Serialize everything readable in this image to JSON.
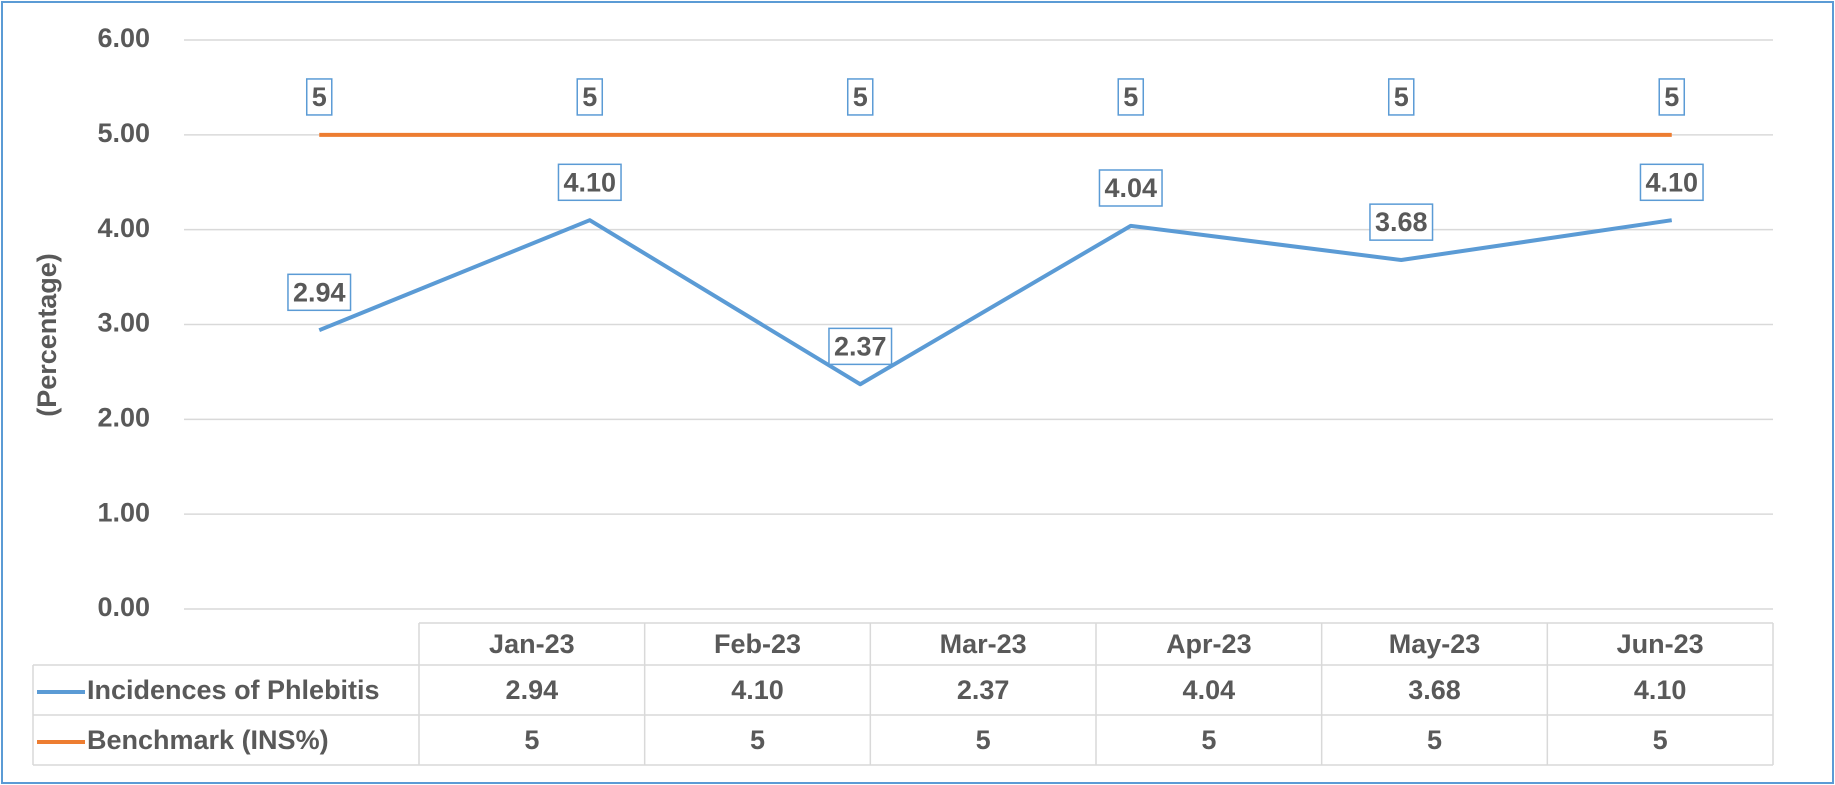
{
  "chart_data": {
    "type": "line",
    "y_label": "(Percentage)",
    "categories": [
      "Jan-23",
      "Feb-23",
      "Mar-23",
      "Apr-23",
      "May-23",
      "Jun-23"
    ],
    "series": [
      {
        "name": "Incidences of Phlebitis",
        "color": "#5b9bd5",
        "values": [
          2.94,
          4.1,
          2.37,
          4.04,
          3.68,
          4.1
        ],
        "value_labels": [
          "2.94",
          "4.10",
          "2.37",
          "4.04",
          "3.68",
          "4.10"
        ]
      },
      {
        "name": "Benchmark (INS%)",
        "color": "#ed7d31",
        "values": [
          5,
          5,
          5,
          5,
          5,
          5
        ]
      }
    ],
    "ylim": [
      0,
      6
    ],
    "yticks": [
      {
        "value": 0,
        "label": "0.00"
      },
      {
        "value": 1,
        "label": "1.00"
      },
      {
        "value": 2,
        "label": "2.00"
      },
      {
        "value": 3,
        "label": "3.00"
      },
      {
        "value": 4,
        "label": "4.00"
      },
      {
        "value": 5,
        "label": "5.00"
      },
      {
        "value": 6,
        "label": "6.00"
      }
    ],
    "grid": true
  }
}
